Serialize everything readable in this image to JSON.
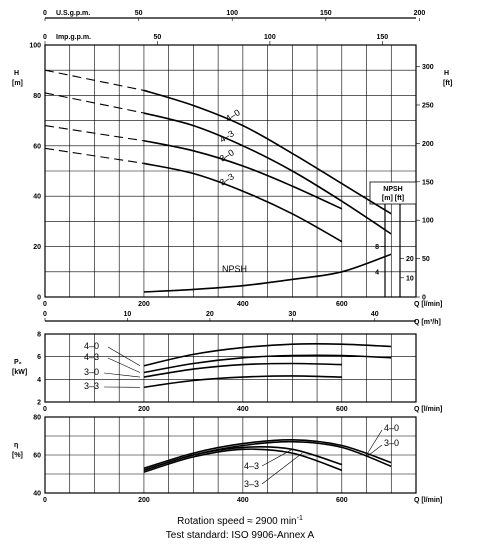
{
  "footer": {
    "line1": "Rotation speed ≈ 2900 min",
    "line1_sup": "-1",
    "line2": "Test standard: ISO 9906-Annex A"
  },
  "chart_data": [
    {
      "id": "head",
      "type": "line",
      "axis_labels": {
        "left_title": "H",
        "left_unit": "[m]",
        "right_title": "H",
        "right_unit": "[ft]",
        "top1": "U.S.g.p.m.",
        "top2": "Imp.g.p.m.",
        "bottom1": "Q [l/min]",
        "bottom2": "Q [m³/h]",
        "npsh_title": "NPSH",
        "npsh_unit": "[m] [ft]"
      },
      "x_range": [
        0,
        750
      ],
      "y_range": [
        0,
        100
      ],
      "y_ticks": [
        0,
        20,
        40,
        60,
        80,
        100
      ],
      "x_ticks_lpm": [
        0,
        200,
        400,
        600
      ],
      "x_ticks_m3h": [
        0,
        10,
        20,
        30,
        40
      ],
      "top_ticks_usgpm": [
        0,
        50,
        100,
        150,
        200
      ],
      "top_ticks_impgpm": [
        0,
        50,
        100,
        150
      ],
      "right_ticks_ft": [
        0,
        50,
        100,
        150,
        200,
        250,
        300
      ],
      "npsh_m_ticks": [
        4,
        8
      ],
      "npsh_ft_ticks": [
        10,
        20
      ],
      "series": [
        {
          "name": "4-0",
          "label": "4–0",
          "dashed": [
            [
              0,
              90
            ],
            [
              200,
              82
            ]
          ],
          "x": [
            200,
            300,
            400,
            500,
            600,
            700
          ],
          "y": [
            82,
            76,
            68,
            57,
            45,
            33
          ]
        },
        {
          "name": "4-3",
          "label": "4–3",
          "dashed": [
            [
              0,
              81
            ],
            [
              200,
              73
            ]
          ],
          "x": [
            200,
            300,
            400,
            500,
            600,
            700
          ],
          "y": [
            73,
            68,
            60,
            50,
            38,
            25
          ]
        },
        {
          "name": "3-0",
          "label": "3–0",
          "dashed": [
            [
              0,
              68
            ],
            [
              200,
              62
            ]
          ],
          "x": [
            200,
            300,
            400,
            500,
            600
          ],
          "y": [
            62,
            58,
            52,
            44,
            35
          ]
        },
        {
          "name": "3-3",
          "label": "3–3",
          "dashed": [
            [
              0,
              59
            ],
            [
              200,
              53
            ]
          ],
          "x": [
            200,
            300,
            400,
            500,
            600
          ],
          "y": [
            53,
            49,
            42,
            33,
            22
          ]
        },
        {
          "name": "NPSH",
          "label": "NPSH",
          "x": [
            200,
            300,
            400,
            500,
            600,
            700
          ],
          "y": [
            2,
            3,
            4.5,
            7,
            10,
            17
          ]
        }
      ]
    },
    {
      "id": "power",
      "type": "line",
      "axis_labels": {
        "left_title": "P₂",
        "left_unit": "[kW]",
        "bottom1": "Q [l/min]"
      },
      "x_range": [
        0,
        750
      ],
      "y_range": [
        2,
        8
      ],
      "y_ticks": [
        2,
        4,
        6,
        8
      ],
      "x_ticks_lpm": [
        0,
        200,
        400,
        600
      ],
      "series": [
        {
          "name": "4-0",
          "label": "4–0",
          "x": [
            200,
            300,
            400,
            500,
            600,
            700
          ],
          "y": [
            5.2,
            6.2,
            6.8,
            7.1,
            7.1,
            6.9
          ]
        },
        {
          "name": "4-3",
          "label": "4–3",
          "x": [
            200,
            300,
            400,
            500,
            600,
            700
          ],
          "y": [
            4.6,
            5.4,
            5.9,
            6.1,
            6.1,
            5.9
          ]
        },
        {
          "name": "3-0",
          "label": "3–0",
          "x": [
            200,
            300,
            400,
            500,
            600
          ],
          "y": [
            4.2,
            4.9,
            5.3,
            5.4,
            5.3
          ]
        },
        {
          "name": "3-3",
          "label": "3–3",
          "x": [
            200,
            300,
            400,
            500,
            600
          ],
          "y": [
            3.3,
            3.9,
            4.2,
            4.3,
            4.2
          ]
        }
      ]
    },
    {
      "id": "efficiency",
      "type": "line",
      "axis_labels": {
        "left_title": "η",
        "left_unit": "[%]",
        "bottom1": "Q [l/min]"
      },
      "x_range": [
        0,
        750
      ],
      "y_range": [
        40,
        80
      ],
      "y_ticks": [
        40,
        60,
        80
      ],
      "x_ticks_lpm": [
        0,
        200,
        400,
        600
      ],
      "series": [
        {
          "name": "4-0",
          "label": "4–0",
          "x": [
            200,
            300,
            400,
            500,
            600,
            700
          ],
          "y": [
            53,
            61,
            66,
            68,
            65,
            56
          ]
        },
        {
          "name": "3-0",
          "label": "3–0",
          "x": [
            200,
            300,
            400,
            500,
            600,
            700
          ],
          "y": [
            52,
            60,
            65,
            67,
            64,
            54
          ]
        },
        {
          "name": "4-3",
          "label": "4–3",
          "x": [
            200,
            300,
            400,
            500,
            600
          ],
          "y": [
            52,
            60,
            64,
            63,
            55
          ]
        },
        {
          "name": "3-3",
          "label": "3–3",
          "x": [
            200,
            300,
            400,
            500,
            600
          ],
          "y": [
            51,
            59,
            63,
            61,
            52
          ]
        }
      ]
    }
  ]
}
